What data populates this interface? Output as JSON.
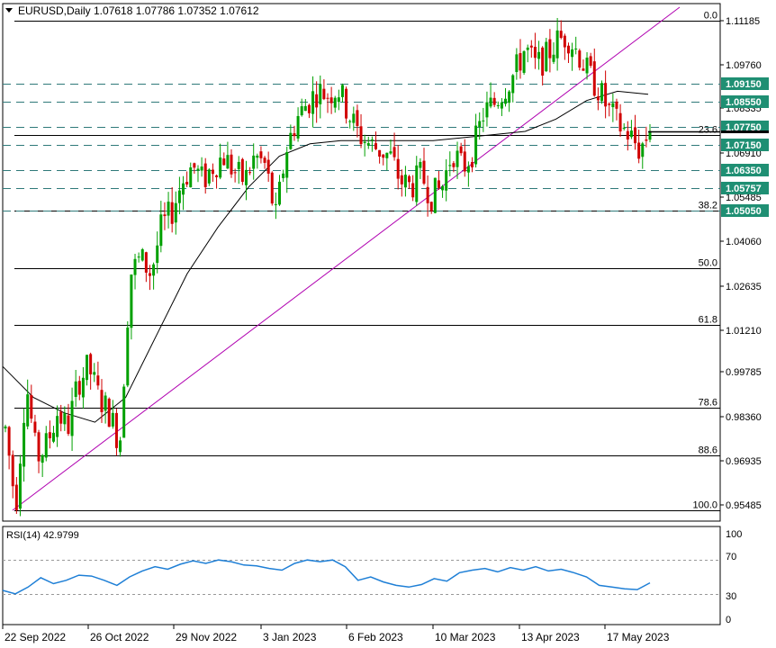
{
  "chart_data": {
    "type": "candlestick",
    "symbol": "EURUSD,Daily",
    "ohlc": [
      "1.07618",
      "1.07786",
      "1.07352",
      "1.07612"
    ],
    "colors": {
      "bull": "#00a000",
      "bear": "#d00000",
      "grid": "#000000",
      "hline": "#2f7a7a",
      "trend": "#b000b0",
      "ma": "#000000",
      "tag_bg": "#1f8f73",
      "rsi": "#1e7fd6"
    },
    "y_axis_ticks": [
      "1.11185",
      "1.09760",
      "1.08335",
      "1.06910",
      "1.05485",
      "1.04060",
      "1.02635",
      "1.01210",
      "0.99785",
      "0.98360",
      "0.96935",
      "0.95485"
    ],
    "ylim": [
      0.95485,
      1.11185
    ],
    "x_axis_ticks": [
      "22 Sep 2022",
      "26 Oct 2022",
      "29 Nov 2022",
      "3 Jan 2023",
      "6 Feb 2023",
      "10 Mar 2023",
      "13 Apr 2023",
      "17 May 2023"
    ],
    "fibonacci_levels": [
      {
        "label": "0.0",
        "price": 1.1118
      },
      {
        "label": "23.6",
        "price": 1.0748
      },
      {
        "label": "38.2",
        "price": 1.0505
      },
      {
        "label": "50.0",
        "price": 1.0318
      },
      {
        "label": "61.8",
        "price": 1.0133
      },
      {
        "label": "78.6",
        "price": 0.9868
      },
      {
        "label": "88.6",
        "price": 0.9712
      },
      {
        "label": "100.0",
        "price": 0.9535
      }
    ],
    "horizontal_levels": [
      {
        "label": "1.09150",
        "price": 1.0915
      },
      {
        "label": "1.08550",
        "price": 1.0855
      },
      {
        "label": "1.07750",
        "price": 1.0775
      },
      {
        "label": "1.07150",
        "price": 1.0715
      },
      {
        "label": "1.06350",
        "price": 1.0635
      },
      {
        "label": "1.05757",
        "price": 1.05757
      },
      {
        "label": "1.05050",
        "price": 1.0505
      }
    ],
    "price_path": [
      0.98,
      0.955,
      0.995,
      0.97,
      0.975,
      0.985,
      0.98,
      0.995,
      1.0,
      0.99,
      0.985,
      0.975,
      1.03,
      1.035,
      1.03,
      1.045,
      1.05,
      1.06,
      1.065,
      1.06,
      1.065,
      1.068,
      1.063,
      1.06,
      1.068,
      1.065,
      1.048,
      1.07,
      1.08,
      1.085,
      1.089,
      1.088,
      1.09,
      1.082,
      1.075,
      1.072,
      1.07,
      1.068,
      1.06,
      1.058,
      1.062,
      1.055,
      1.058,
      1.07,
      1.064,
      1.07,
      1.082,
      1.085,
      1.09,
      1.095,
      1.103,
      1.097,
      1.1,
      1.105,
      1.107,
      1.102,
      1.095,
      1.09,
      1.083,
      1.078,
      1.075,
      1.07,
      1.0761
    ],
    "ma_path": [
      1.0,
      0.99,
      0.985,
      0.982,
      0.99,
      1.01,
      1.03,
      1.045,
      1.058,
      1.068,
      1.072,
      1.073,
      1.073,
      1.073,
      1.073,
      1.074,
      1.075,
      1.076,
      1.08,
      1.086,
      1.089,
      1.088
    ],
    "trendline": {
      "from": 0.9535,
      "to": 1.125
    },
    "rsi": {
      "label": "RSI(14) 42.9799",
      "levels": [
        "100",
        "70",
        "30",
        "0"
      ],
      "values": [
        34,
        30,
        38,
        49,
        42,
        46,
        52,
        51,
        46,
        40,
        50,
        57,
        62,
        59,
        65,
        69,
        66,
        70,
        68,
        64,
        63,
        60,
        58,
        66,
        70,
        68,
        70,
        62,
        46,
        50,
        44,
        40,
        38,
        41,
        48,
        45,
        55,
        58,
        60,
        56,
        61,
        58,
        62,
        57,
        59,
        55,
        50,
        40,
        38,
        36,
        35,
        43
      ]
    }
  }
}
